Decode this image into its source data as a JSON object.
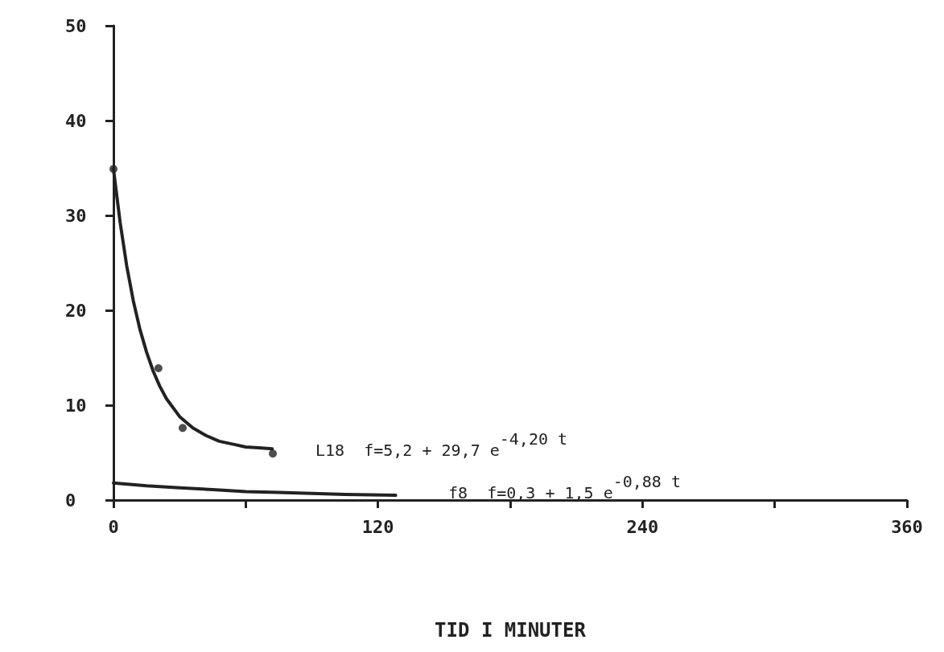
{
  "chart_data": {
    "type": "line",
    "xlabel": "TID I MINUTER",
    "xlim": [
      0,
      360
    ],
    "xticks": [
      0,
      {
        "value": 60,
        "label": null
      },
      120,
      {
        "value": 180,
        "label": null
      },
      240,
      {
        "value": 300,
        "label": null
      },
      360
    ],
    "ylim": [
      0,
      50
    ],
    "yticks": [
      0,
      10,
      20,
      30,
      40,
      50
    ],
    "grid": false,
    "line_style": "solid",
    "series": [
      {
        "marker": "none",
        "color": "#222222",
        "x": [
          0,
          3,
          6,
          9,
          12,
          15,
          18,
          21,
          24,
          30,
          36,
          42,
          48,
          54,
          60,
          66,
          72
        ],
        "values": [
          34.9,
          29.3,
          24.7,
          21.0,
          18.0,
          15.6,
          13.6,
          12.0,
          10.7,
          8.8,
          7.6,
          6.8,
          6.2,
          5.9,
          5.6,
          5.5,
          5.4
        ]
      },
      {
        "type": "scatter",
        "marker": "circle",
        "color": "#222222",
        "x": [
          0,
          20.4,
          31.4,
          72.3
        ],
        "values": [
          34.9,
          13.9,
          7.6,
          4.9
        ]
      },
      {
        "marker": "none",
        "color": "#222222",
        "x": [
          0,
          15,
          30,
          45,
          60,
          75,
          90,
          105,
          128
        ],
        "values": [
          1.8,
          1.5,
          1.3,
          1.1,
          0.9,
          0.8,
          0.7,
          0.6,
          0.5
        ]
      }
    ],
    "annotations": [
      "L18  f=5,2 + 29,7 e$^{-4,20 t}$",
      "f8  f=0,3 + 1,5 e$^{-0,88 t}$"
    ]
  }
}
